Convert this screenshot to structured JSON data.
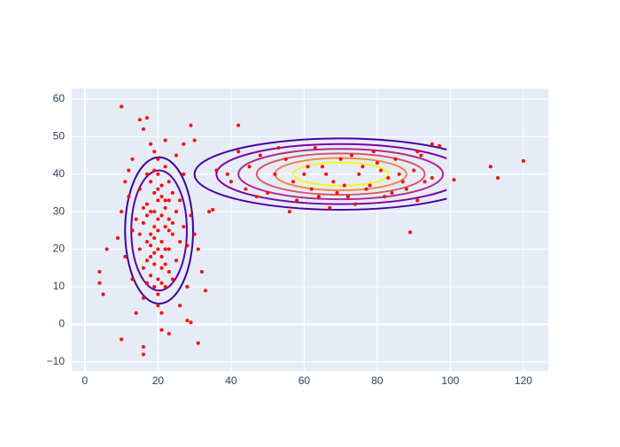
{
  "chart_data": {
    "type": "scatter",
    "marker_color": "#ff0000",
    "x": [
      20,
      18,
      22,
      19,
      21,
      17,
      23,
      20,
      19,
      22,
      16,
      24,
      18,
      21,
      20,
      17,
      23,
      19,
      25,
      15,
      22,
      20,
      18,
      21,
      24,
      16,
      19,
      23,
      20,
      17,
      22,
      26,
      14,
      21,
      19,
      20,
      18,
      25,
      15,
      23,
      20,
      22,
      17,
      24,
      13,
      27,
      19,
      21,
      16,
      26,
      12,
      28,
      11,
      29,
      13,
      27,
      10,
      30,
      12,
      28,
      14,
      25,
      18,
      22,
      11,
      31,
      32,
      9,
      26,
      13,
      20,
      18,
      22,
      21,
      19,
      17,
      23,
      20,
      24,
      16,
      21,
      19,
      18,
      22,
      20,
      15,
      23,
      17,
      21,
      19,
      40,
      45,
      50,
      55,
      60,
      62,
      65,
      68,
      70,
      72,
      75,
      78,
      80,
      83,
      85,
      88,
      90,
      93,
      48,
      52,
      58,
      63,
      67,
      73,
      77,
      82,
      86,
      92,
      44,
      57,
      66,
      71,
      76,
      84,
      39,
      47,
      53,
      61,
      69,
      74,
      79,
      87,
      95,
      42,
      56,
      64,
      81,
      91,
      10,
      15,
      17,
      16,
      29,
      42,
      120,
      111,
      113,
      101,
      89,
      31,
      16,
      16,
      10,
      21,
      4,
      4,
      5,
      6,
      28,
      29,
      23,
      33,
      34,
      35,
      36,
      30,
      27,
      97,
      91,
      95
    ],
    "y": [
      25,
      30,
      20,
      35,
      15,
      22,
      28,
      40,
      10,
      33,
      27,
      24,
      18,
      37,
      8,
      32,
      14,
      26,
      30,
      20,
      42,
      12,
      38,
      22,
      35,
      15,
      30,
      20,
      33,
      11,
      26,
      22,
      28,
      29,
      19,
      44,
      24,
      17,
      36,
      38,
      5,
      10,
      40,
      12,
      25,
      26,
      46,
      3,
      7,
      33,
      34,
      21,
      18,
      29,
      12,
      40,
      30,
      24,
      41,
      10,
      3,
      45,
      48,
      49,
      38,
      20,
      14,
      23,
      5,
      44,
      28,
      21,
      31,
      18,
      23,
      17,
      25,
      36,
      27,
      31,
      11,
      41,
      13,
      16,
      20,
      24,
      33,
      29,
      34,
      16,
      38,
      42,
      35,
      44,
      40,
      36,
      42,
      38,
      44,
      34,
      40,
      37,
      43,
      39,
      44,
      36,
      41,
      38,
      45,
      40,
      33,
      47,
      31,
      45,
      36,
      34,
      40,
      45,
      36,
      38,
      40,
      37,
      42,
      35,
      40,
      34,
      47,
      42,
      35,
      32,
      46,
      38,
      39,
      46,
      30,
      34,
      41,
      33,
      58,
      54.5,
      55,
      52,
      53,
      53,
      43.5,
      42,
      39,
      38.5,
      24.5,
      -5,
      -6,
      -8,
      -4,
      -1.5,
      14,
      11,
      8,
      20,
      1,
      0.5,
      -2.5,
      9,
      30,
      30.5,
      41,
      49,
      48,
      47.5,
      46,
      48
    ],
    "contours": [
      {
        "cx": 20.3,
        "cy": 25,
        "rx": 9.3,
        "ry": 19.5,
        "color": "#3c049b"
      },
      {
        "cx": 20.3,
        "cy": 25,
        "rx": 7.6,
        "ry": 16,
        "color": "#5c01a6"
      },
      {
        "cx": 70,
        "cy": 40,
        "rx": 40,
        "ry": 9.5,
        "color": "#4c02a1"
      },
      {
        "cx": 70,
        "cy": 40,
        "rx": 34,
        "ry": 8,
        "color": "#7e03a8"
      },
      {
        "cx": 70,
        "cy": 40,
        "rx": 28,
        "ry": 6.7,
        "color": "#b12a90"
      },
      {
        "cx": 70,
        "cy": 40,
        "rx": 23,
        "ry": 5.5,
        "color": "#d8576b"
      },
      {
        "cx": 70,
        "cy": 40,
        "rx": 18,
        "ry": 4.3,
        "color": "#f48849"
      },
      {
        "cx": 70,
        "cy": 40,
        "rx": 13,
        "ry": 3.1,
        "color": "#f0f921"
      }
    ],
    "contour_xmax": 99,
    "xlim": [
      -3.6,
      126.8
    ],
    "ylim": [
      -12.4,
      62.8
    ],
    "xticks": [
      0,
      20,
      40,
      60,
      80,
      100,
      120
    ],
    "yticks": [
      {
        "value": -10,
        "label": "−10"
      },
      0,
      10,
      20,
      30,
      40,
      50,
      60
    ],
    "grid": true
  }
}
